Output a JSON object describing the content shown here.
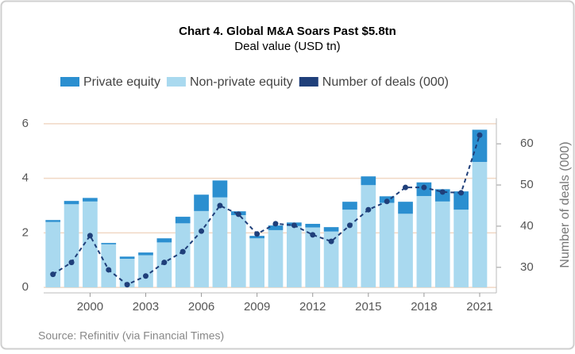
{
  "chart_data": {
    "type": "bar",
    "stacked": true,
    "title": "Chart 4. Global M&A Soars Past $5.8tn",
    "subtitle": "Deal value (USD tn)",
    "y2_label": "Number of deals (000)",
    "source": "Source: Refinitiv (via Financial Times)",
    "x": [
      1998,
      1999,
      2000,
      2001,
      2002,
      2003,
      2004,
      2005,
      2006,
      2007,
      2008,
      2009,
      2010,
      2011,
      2012,
      2013,
      2014,
      2015,
      2016,
      2017,
      2018,
      2019,
      2020,
      2021
    ],
    "xlim": [
      1997.5,
      2021.9
    ],
    "xticks": [
      2000,
      2003,
      2006,
      2009,
      2012,
      2015,
      2018,
      2021
    ],
    "ylim": [
      -0.2,
      6.2
    ],
    "yticks": [
      0,
      2,
      4,
      6
    ],
    "y2lim": [
      23.8,
      66.2
    ],
    "y2ticks": [
      30,
      40,
      50,
      60
    ],
    "grid": true,
    "series": [
      {
        "name": "Non-private equity",
        "type": "bar",
        "color": "#a9d9ef",
        "values": [
          2.4,
          3.05,
          3.15,
          1.58,
          1.05,
          1.18,
          1.65,
          2.35,
          2.8,
          3.3,
          2.65,
          1.8,
          2.1,
          2.25,
          2.2,
          2.05,
          2.85,
          3.75,
          3.1,
          2.7,
          3.35,
          3.15,
          2.85,
          4.6
        ]
      },
      {
        "name": "Private equity",
        "type": "bar",
        "color": "#2b8fd0",
        "values": [
          0.07,
          0.12,
          0.13,
          0.05,
          0.08,
          0.1,
          0.15,
          0.24,
          0.6,
          0.62,
          0.14,
          0.09,
          0.17,
          0.13,
          0.13,
          0.16,
          0.29,
          0.32,
          0.24,
          0.44,
          0.5,
          0.45,
          0.67,
          1.18
        ]
      },
      {
        "name": "Number of deals (000)",
        "type": "line",
        "axis": "y2",
        "color": "#1f3f7a",
        "values": [
          28.3,
          31.2,
          37.7,
          29.4,
          25.8,
          27.9,
          31.2,
          33.8,
          38.8,
          45,
          42.9,
          38.1,
          40.6,
          40.2,
          37.9,
          36.3,
          40.2,
          44,
          46,
          49.4,
          49.4,
          48.3,
          48.1,
          62.1
        ]
      }
    ],
    "legend_order": [
      1,
      0,
      2
    ]
  }
}
